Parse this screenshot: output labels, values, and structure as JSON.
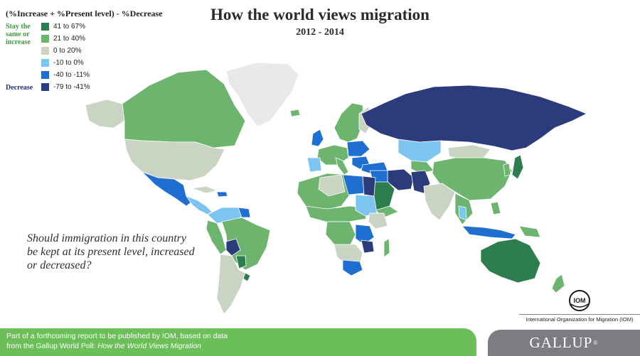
{
  "title": "How the world views migration",
  "subtitle": "2012 - 2014",
  "legend": {
    "heading": "(%Increase + %Present level) - %Decrease",
    "side_up": "Stay the same or increase",
    "side_down": "Decrease",
    "bins": [
      {
        "label": "41 to 67%",
        "color": "#2e7d4f"
      },
      {
        "label": "21 to 40%",
        "color": "#6db56f"
      },
      {
        "label": "0 to 20%",
        "color": "#c9d4c3"
      },
      {
        "label": "-10 to 0%",
        "color": "#7cc5f0"
      },
      {
        "label": "-40 to -11%",
        "color": "#1f6fd1"
      },
      {
        "label": "-79 to -41%",
        "color": "#2b3b7c"
      }
    ],
    "no_data_color": "#e9e9e9"
  },
  "question": "Should immigration in this country be kept at its present level, increased or decreased?",
  "footer": {
    "line1": "Part of a forthcoming report to be published by IOM, based on data",
    "line2_prefix": "from the Gallup World Poll: ",
    "line2_title": "How the World Views Migration"
  },
  "iom": {
    "label": "International Organization for Migration (IOM)",
    "logo_text": "IOM"
  },
  "brand": {
    "name": "GALLUP",
    "mark": "®"
  }
}
